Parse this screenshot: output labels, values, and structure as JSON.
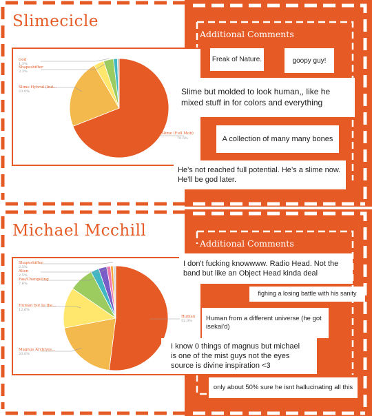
{
  "colors": {
    "accent": "#e55a25",
    "white": "#ffffff"
  },
  "top": {
    "title": "Slimecicle",
    "additional_title": "Additional Comments",
    "chart_labels": {
      "god": "God",
      "god_pct": "1.3%",
      "shapeshifter": "Shapeshifter",
      "shapeshifter_pct": "3.3%",
      "hybrid": "Slime Hybrid (Ind...",
      "hybrid_pct": "23.0%",
      "mob": "Slime (Full Mob)",
      "mob_pct": "70.5%"
    },
    "comments": [
      "Freak of Nature.",
      "goopy guy!",
      "Slime but molded to look human,, like he mixed stuff in for colors and everything",
      "A collection of many many bones",
      "He’s not reached full potential. He’s a slime now. He’ll be god later."
    ]
  },
  "bottom": {
    "title": "Michael Mcchill",
    "additional_title": "Additional Comments",
    "chart_labels": {
      "shapeshifter": "Shapeshifter",
      "shapeshifter_pct": "2.5%",
      "alien": "Alien",
      "alien_pct": "2.5%",
      "fae": "Fae/Changeling",
      "fae_pct": "7.6%",
      "human_but": "Human but to the...",
      "human_but_pct": "12.6%",
      "magnus": "Magnus Archives...",
      "magnus_pct": "20.0%",
      "human": "Human",
      "human_pct": "52.0%"
    },
    "comments": [
      "I don't fucking knowwww. Radio Head. Not the band but like an Object Head kinda deal",
      "fighing a losing battle with his sanity",
      "Human from a different universe (he got isekai'd)",
      "I know 0 things of magnus but michael is one of the mist guys not the eyes source is divine inspiration <3",
      "only about 50% sure he isnt hallucinating all this"
    ]
  },
  "chart_data": [
    {
      "type": "pie",
      "title": "",
      "slices": [
        {
          "label": "Slime (Full Mob)",
          "value": 70.5,
          "color": "#e55a25"
        },
        {
          "label": "Slime Hybrid (Ind...",
          "value": 23.0,
          "color": "#f4b94c"
        },
        {
          "label": "",
          "value": 3.4,
          "color": "#ffe76e"
        },
        {
          "label": "Shapeshifter",
          "value": 3.3,
          "color": "#9ccb5f"
        },
        {
          "label": "God",
          "value": 1.3,
          "color": "#41b7c4"
        },
        {
          "label": "",
          "value": 0.6,
          "color": "#bdbdbd"
        }
      ]
    },
    {
      "type": "pie",
      "title": "",
      "slices": [
        {
          "label": "Human",
          "value": 52.0,
          "color": "#e55a25"
        },
        {
          "label": "Magnus Archives...",
          "value": 20.0,
          "color": "#f4b94c"
        },
        {
          "label": "Human but to the...",
          "value": 12.6,
          "color": "#ffe76e"
        },
        {
          "label": "Fae/Changeling",
          "value": 7.6,
          "color": "#9ccb5f"
        },
        {
          "label": "Alien",
          "value": 2.5,
          "color": "#41b7c4"
        },
        {
          "label": "Shapeshifter",
          "value": 2.5,
          "color": "#7a5cc8"
        },
        {
          "label": "",
          "value": 1.2,
          "color": "#f07ab0"
        },
        {
          "label": "",
          "value": 0.8,
          "color": "#f4a83c"
        },
        {
          "label": "",
          "value": 0.8,
          "color": "#d8d8d8"
        }
      ]
    }
  ]
}
